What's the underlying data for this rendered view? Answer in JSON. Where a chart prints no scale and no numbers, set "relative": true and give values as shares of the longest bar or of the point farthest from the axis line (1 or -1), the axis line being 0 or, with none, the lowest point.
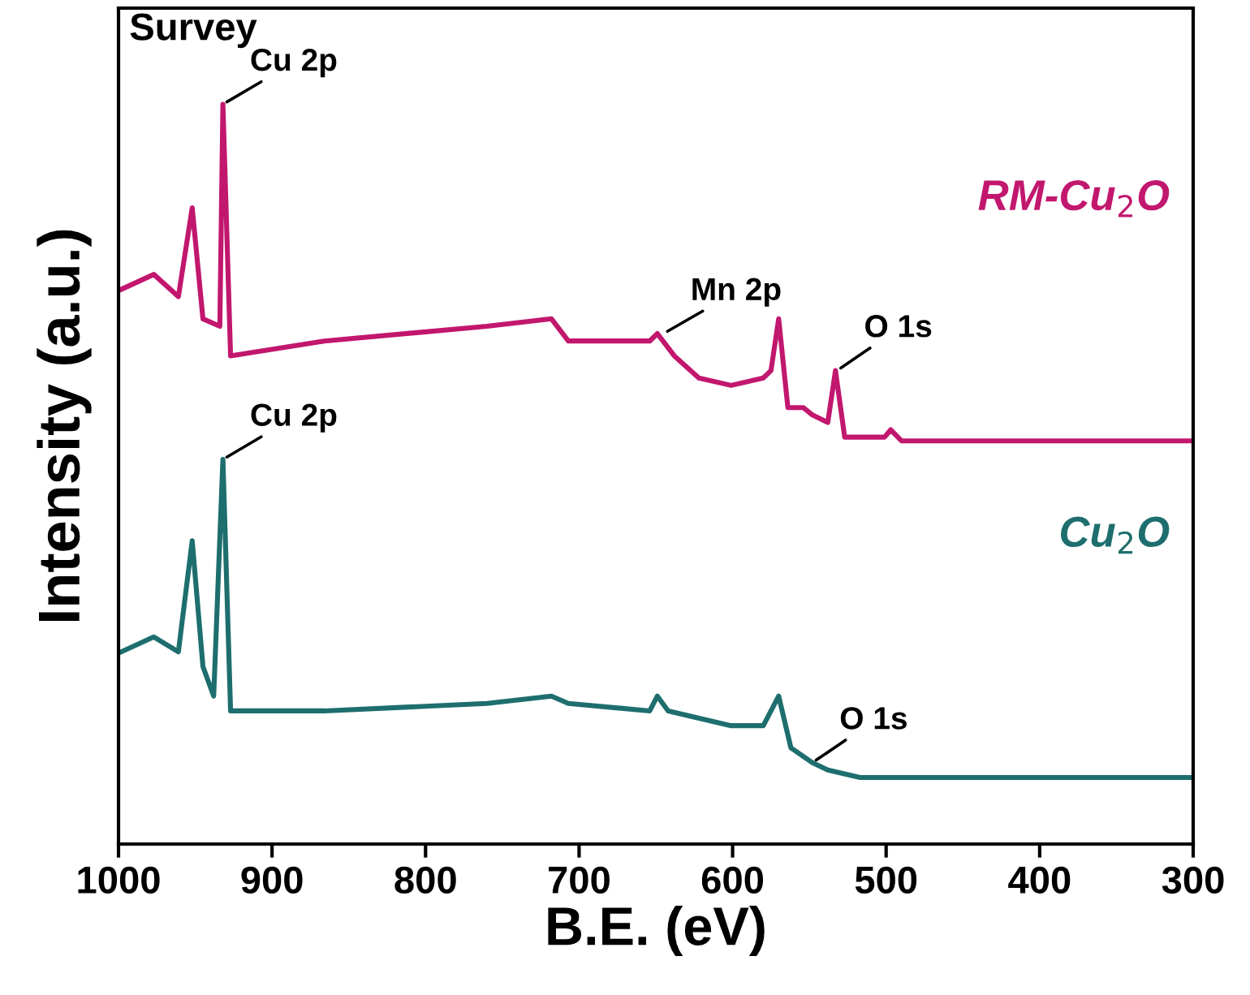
{
  "chart_data": {
    "type": "line",
    "xlabel": "B.E. (eV)",
    "ylabel": "Intensity (a.u.)",
    "relative": true,
    "xlim": [
      1000,
      300
    ],
    "xticks": [
      1000,
      900,
      800,
      700,
      600,
      500,
      400,
      300
    ],
    "grid": false,
    "marker": "none",
    "line_style": "solid",
    "series": [
      {
        "name": "RM-Cu$_{2}$O",
        "color": "#c2176e",
        "x": [
          998,
          977,
          961,
          952,
          945,
          934,
          932,
          927,
          866,
          760,
          718,
          707,
          686,
          654,
          649,
          638,
          622,
          601,
          580,
          575,
          570,
          564,
          554,
          548,
          538,
          533,
          527,
          517,
          501,
          497,
          490,
          300
        ],
        "values": [
          0.75,
          0.77,
          0.74,
          0.86,
          0.71,
          0.7,
          1.0,
          0.66,
          0.68,
          0.7,
          0.71,
          0.68,
          0.68,
          0.68,
          0.69,
          0.66,
          0.63,
          0.62,
          0.63,
          0.64,
          0.71,
          0.59,
          0.59,
          0.58,
          0.57,
          0.64,
          0.55,
          0.55,
          0.55,
          0.56,
          0.545,
          0.545
        ]
      },
      {
        "name": "Cu$_{2}$O",
        "color": "#1e6e6e",
        "x": [
          998,
          977,
          961,
          952,
          945,
          938,
          932,
          927,
          866,
          760,
          718,
          707,
          654,
          649,
          642,
          601,
          580,
          570,
          562,
          548,
          538,
          517,
          300
        ],
        "values": [
          0.26,
          0.28,
          0.26,
          0.41,
          0.24,
          0.2,
          0.52,
          0.18,
          0.18,
          0.19,
          0.2,
          0.19,
          0.18,
          0.2,
          0.18,
          0.16,
          0.16,
          0.2,
          0.13,
          0.11,
          0.1,
          0.09,
          0.09
        ]
      }
    ],
    "annotations": [
      "Survey",
      {
        "text": "Cu 2p",
        "x": 932,
        "y": 1.0
      },
      {
        "text": "Mn 2p",
        "x": 645,
        "y": 0.69
      },
      {
        "text": "O 1s",
        "x": 532,
        "y": 0.64
      },
      {
        "text": "Cu 2p",
        "x": 932,
        "y": 0.52
      },
      {
        "text": "O 1s",
        "x": 548,
        "y": 0.11
      }
    ]
  }
}
